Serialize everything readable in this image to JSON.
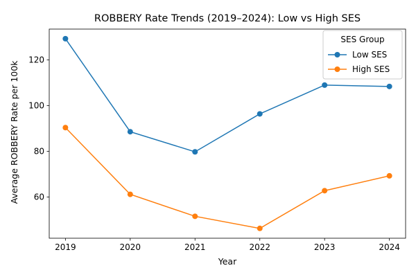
{
  "chart_data": {
    "type": "line",
    "title": "ROBBERY Rate Trends (2019–2024): Low vs High SES",
    "xlabel": "Year",
    "ylabel": "Average ROBBERY Rate per 100k",
    "x": [
      "2019",
      "2020",
      "2021",
      "2022",
      "2023",
      "2024"
    ],
    "xlim": [
      2018.75,
      2024.25
    ],
    "ylim": [
      42.0,
      133.5
    ],
    "yticks": [
      60,
      80,
      100,
      120
    ],
    "grid": false,
    "legend": {
      "title": "SES Group",
      "position": "top-right"
    },
    "series": [
      {
        "name": "Low SES",
        "color": "#1f77b4",
        "marker": "circle",
        "values": [
          129.3,
          88.6,
          79.8,
          96.4,
          109.0,
          108.4
        ]
      },
      {
        "name": "High SES",
        "color": "#ff7f0e",
        "marker": "circle",
        "values": [
          90.4,
          61.2,
          51.6,
          46.3,
          62.8,
          69.3
        ]
      }
    ]
  }
}
